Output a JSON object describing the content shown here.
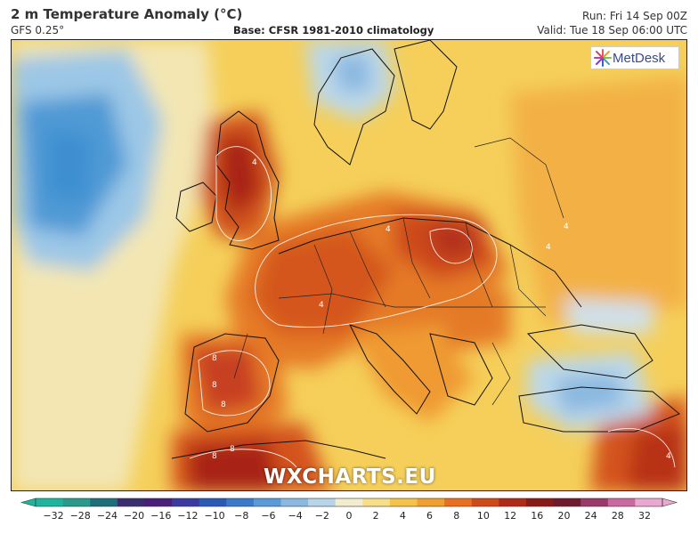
{
  "header": {
    "title": "2 m Temperature Anomaly (°C)",
    "model": "GFS 0.25°",
    "base": "Base: CFSR 1981-2010 climatology",
    "run": "Run: Fri 14 Sep 00Z",
    "valid": "Valid: Tue 18 Sep 06:00 UTC"
  },
  "branding": {
    "logo_text": "MetDesk",
    "watermark": "WXCHARTS.EU"
  },
  "colorbar": {
    "ticks": [
      "−32",
      "−28",
      "−24",
      "−20",
      "−16",
      "−12",
      "−10",
      "−8",
      "−6",
      "−4",
      "−2",
      "0",
      "2",
      "4",
      "6",
      "8",
      "10",
      "12",
      "16",
      "20",
      "24",
      "28",
      "32"
    ],
    "colors": [
      "#1fb59c",
      "#2a9a8a",
      "#1f6f7a",
      "#3a2f6e",
      "#4a1f7a",
      "#3a3aa0",
      "#2a5ab5",
      "#3a7ac8",
      "#5a9ad8",
      "#8ab8e0",
      "#b8d4e8",
      "#f2ecd0",
      "#f7df8a",
      "#f5c24a",
      "#f0a030",
      "#e87020",
      "#d04a18",
      "#b02a18",
      "#8a1a18",
      "#701a30",
      "#9a3a6a",
      "#c86aa0",
      "#e8a8d0"
    ]
  },
  "map": {
    "region": "Europe",
    "palette": {
      "cold": "#3d8fd0",
      "cool": "#9cc7e6",
      "neutral": "#f3e6b3",
      "warm": "#f4c347",
      "hot": "#ea8b28",
      "very_hot": "#cf4a1d",
      "extreme": "#a82418"
    },
    "contour_labels": [
      "4",
      "4",
      "4",
      "4",
      "4",
      "8",
      "8",
      "8",
      "8",
      "8",
      "4"
    ]
  }
}
